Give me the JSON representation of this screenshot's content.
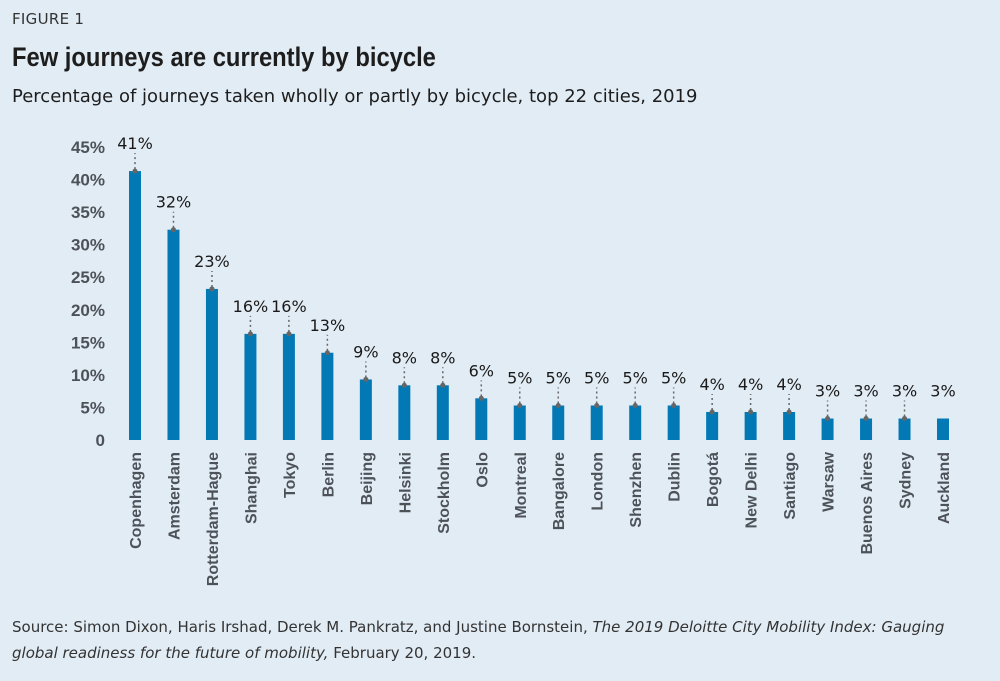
{
  "figure_label": "FIGURE 1",
  "chart_data": {
    "type": "bar",
    "title": "Few journeys are currently by bicycle",
    "subtitle": "Percentage of journeys taken wholly or partly by bicycle, top 22 cities, 2019",
    "xlabel": "",
    "ylabel": "",
    "ylim": [
      0,
      45
    ],
    "yticks": [
      "0",
      "5%",
      "10%",
      "15%",
      "20%",
      "25%",
      "30%",
      "35%",
      "40%",
      "45%"
    ],
    "grid": false,
    "bar_color": "#0279b5",
    "categories": [
      "Copenhagen",
      "Amsterdam",
      "Rotterdam-Hague",
      "Shanghai",
      "Tokyo",
      "Berlin",
      "Beijing",
      "Helsinki",
      "Stockholm",
      "Oslo",
      "Montreal",
      "Bangalore",
      "London",
      "Shenzhen",
      "Dublin",
      "Bogotá",
      "New Delhi",
      "Santiago",
      "Warsaw",
      "Buenos Aires",
      "Sydney",
      "Auckland"
    ],
    "values": [
      41.3,
      32.3,
      23.2,
      16.3,
      16.3,
      13.4,
      9.3,
      8.4,
      8.4,
      6.4,
      5.3,
      5.3,
      5.3,
      5.3,
      5.3,
      4.3,
      4.3,
      4.3,
      3.3,
      3.3,
      3.3,
      3.3
    ],
    "data_labels": [
      "41%",
      "32%",
      "23%",
      "16%",
      "16%",
      "13%",
      "9%",
      "8%",
      "8%",
      "6%",
      "5%",
      "5%",
      "5%",
      "5%",
      "5%",
      "4%",
      "4%",
      "4%",
      "3%",
      "3%",
      "3%",
      "3%"
    ]
  },
  "source": {
    "prefix": "Source: Simon Dixon, Haris Irshad, Derek M. Pankratz, and Justine Bornstein, ",
    "italic": "The 2019 Deloitte City Mobility Index: Gauging global readiness for the future of mobility,",
    "suffix": " February 20, 2019."
  }
}
